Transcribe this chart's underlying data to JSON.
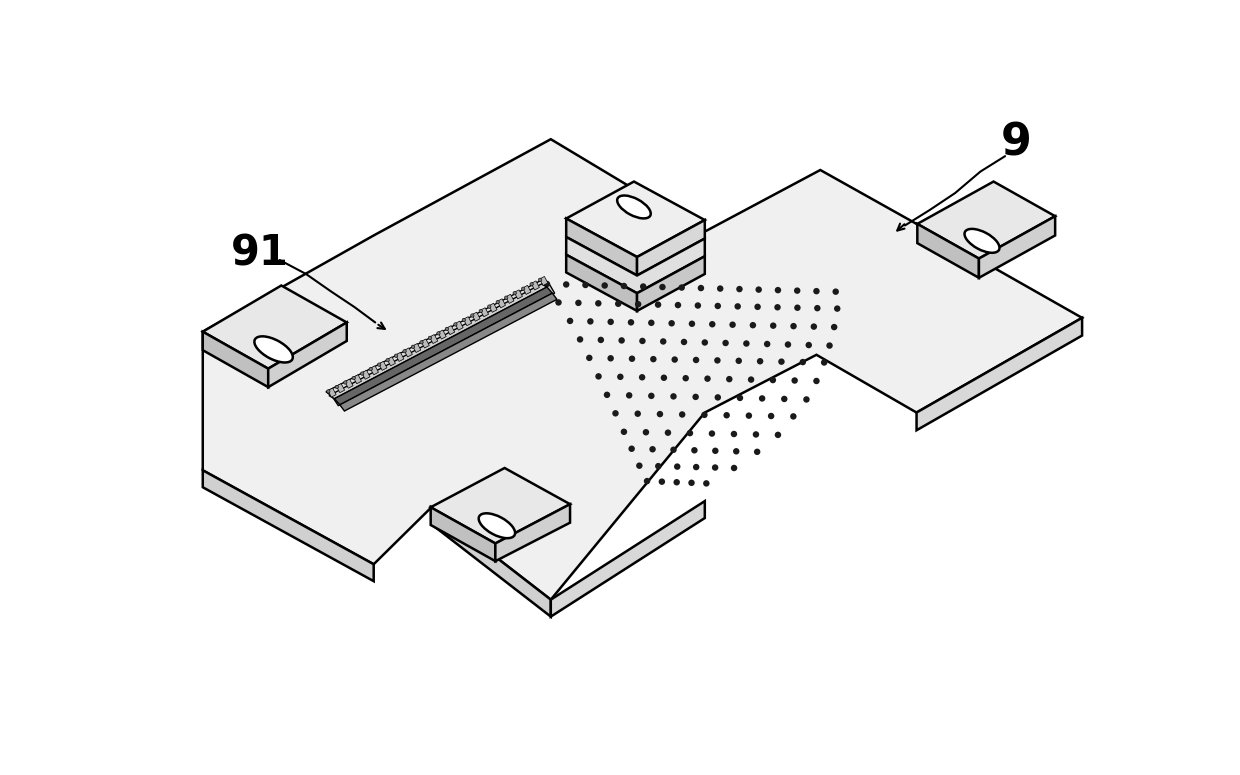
{
  "bg_color": "#ffffff",
  "line_color": "#000000",
  "line_width": 1.8,
  "fig_width": 12.4,
  "fig_height": 7.75,
  "dpi": 100,
  "label_9": "9",
  "label_91": "91"
}
